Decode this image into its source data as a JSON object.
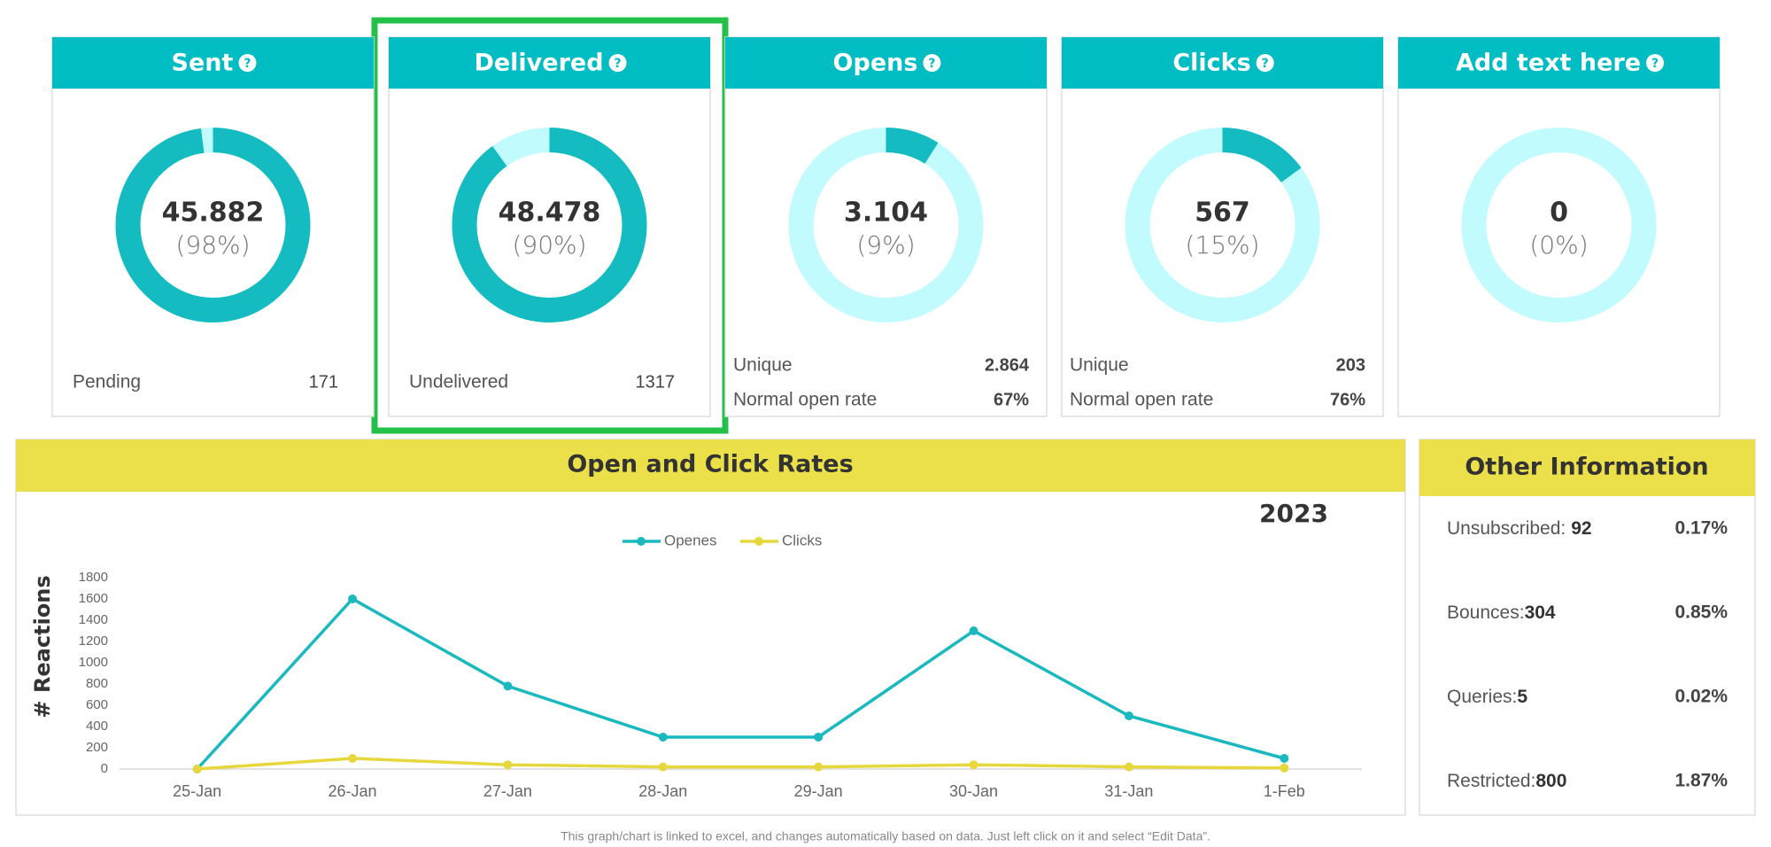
{
  "cards": [
    {
      "title": "Sent",
      "value": "45.882",
      "percent": 98,
      "percent_label": "(98%)",
      "rows": [
        {
          "label": "Pending",
          "value": "171"
        }
      ]
    },
    {
      "title": "Delivered",
      "value": "48.478",
      "percent": 90,
      "percent_label": "(90%)",
      "rows": [
        {
          "label": "Undelivered",
          "value": "1317"
        }
      ]
    },
    {
      "title": "Opens",
      "value": "3.104",
      "percent": 9,
      "percent_label": "(9%)",
      "rows": [
        {
          "label": "Unique",
          "value": "2.864"
        },
        {
          "label": "Normal open rate",
          "value": "67%"
        }
      ]
    },
    {
      "title": "Clicks",
      "value": "567",
      "percent": 15,
      "percent_label": "(15%)",
      "rows": [
        {
          "label": "Unique",
          "value": "203"
        },
        {
          "label": "Normal open rate",
          "value": "76%"
        }
      ]
    },
    {
      "title": "Add text here",
      "value": "0",
      "percent": 0,
      "percent_label": "(0%)"
    }
  ],
  "card_colors": {
    "header": "#00bcc3",
    "arc": "#14bcc2",
    "track": "#c2fbfd"
  },
  "chart_data": {
    "type": "line",
    "title": "Open and Click Rates",
    "annotation": "2023",
    "y_label": "# Reactions",
    "categories": [
      "25-Jan",
      "26-Jan",
      "27-Jan",
      "28-Jan",
      "29-Jan",
      "30-Jan",
      "31-Jan",
      "1-Feb"
    ],
    "series": [
      {
        "name": "Openes",
        "color": "#1ab9bf",
        "values": [
          0,
          1600,
          780,
          300,
          300,
          1300,
          500,
          100
        ]
      },
      {
        "name": "Clicks",
        "color": "#e6d83c",
        "values": [
          0,
          100,
          40,
          20,
          20,
          40,
          20,
          10
        ]
      }
    ],
    "ylim": [
      0,
      1800
    ],
    "yticks": [
      0,
      200,
      400,
      600,
      800,
      1000,
      1200,
      1400,
      1600,
      1800
    ],
    "legend": "top"
  },
  "other_information": {
    "title": "Other Information",
    "rows": [
      {
        "label": "Unsubscribed:",
        "count": "92",
        "percent": "0.17%"
      },
      {
        "label": "Bounces:",
        "count": "304",
        "percent": "0.85%"
      },
      {
        "label": "Queries:",
        "count": "5",
        "percent": "0.02%"
      },
      {
        "label": "Restricted:",
        "count": "800",
        "percent": "1.87%"
      }
    ]
  },
  "footnote": "This graph/chart is linked to excel, and changes automatically based on data. Just left click on it and select “Edit Data”."
}
